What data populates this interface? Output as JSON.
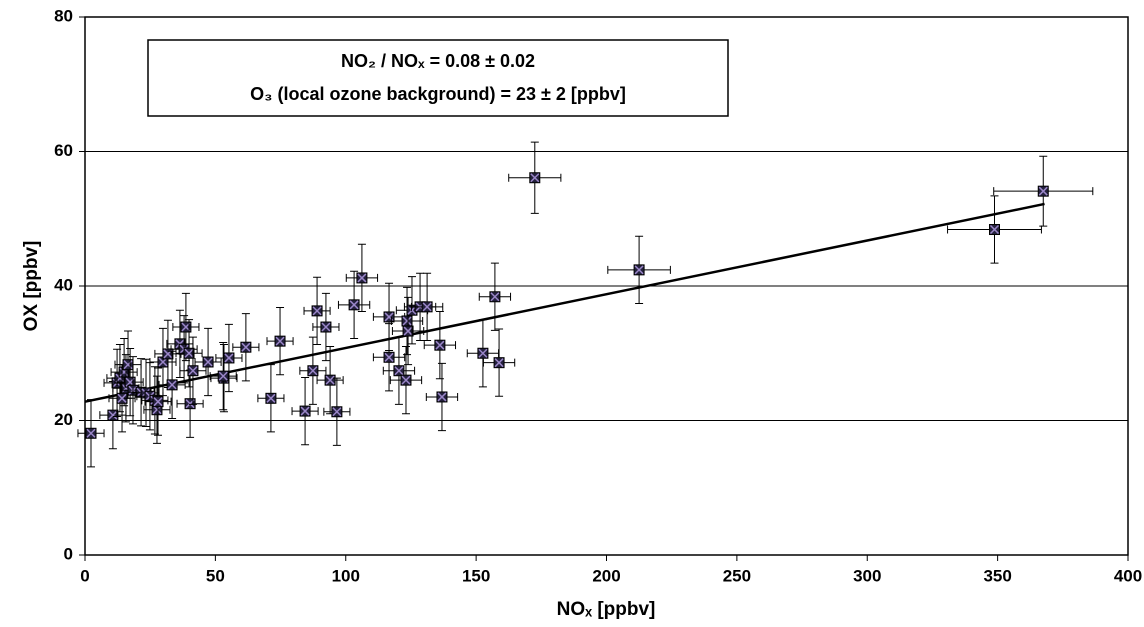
{
  "chart_data": {
    "type": "scatter",
    "annotations": [
      "NO₂ / NOₓ = 0.08 ± 0.02",
      "O₃ (local ozone background) = 23 ± 2 [ppbv]"
    ],
    "x_label": "NOₓ [ppbv]",
    "y_label": "OX [ppbv]",
    "xlim": [
      0,
      400
    ],
    "xticks": [
      0,
      50,
      100,
      150,
      200,
      250,
      300,
      350,
      400
    ],
    "ylim": [
      0,
      80
    ],
    "yticks": [
      0,
      20,
      40,
      60,
      80
    ],
    "grid": true,
    "marker_color": "#24213d",
    "cross_color": "#9a86c8",
    "x": [
      2.3,
      10.7,
      12.3,
      13.4,
      15,
      15.7,
      14.2,
      16.5,
      17.3,
      18.4,
      21.5,
      23.4,
      24.9,
      26.8,
      27.6,
      28,
      29.9,
      31.8,
      33.4,
      36.4,
      38,
      38.7,
      39.9,
      40.3,
      41.4,
      47.2,
      53.3,
      53,
      55.2,
      61.7,
      71.3,
      74.8,
      84.4,
      87.4,
      89,
      92.4,
      94,
      96.6,
      103.2,
      106.2,
      116.6,
      116.6,
      120.4,
      123.1,
      123.5,
      123.9,
      125.4,
      128.5,
      131.2,
      136.1,
      136.9,
      152.6,
      157.2,
      158.8,
      172.5,
      212.5,
      348.8,
      367.5
    ],
    "y": [
      18.1,
      20.8,
      25.6,
      26.3,
      27.2,
      24.8,
      23.3,
      28.3,
      25.7,
      24.5,
      24.2,
      24.1,
      23.6,
      23,
      21.6,
      22.8,
      28.7,
      29.9,
      25.3,
      31.4,
      30.6,
      33.9,
      30,
      22.5,
      27.4,
      28.7,
      26.3,
      26.6,
      29.3,
      30.9,
      23.3,
      31.8,
      21.4,
      27.4,
      36.3,
      33.9,
      26,
      21.3,
      37.2,
      41.2,
      35.4,
      29.4,
      27.4,
      26,
      34.8,
      33.3,
      36.4,
      36.9,
      36.9,
      31.2,
      23.5,
      30,
      38.4,
      28.6,
      56.1,
      42.4,
      48.4,
      54.1
    ],
    "xerr": [
      5,
      5,
      5,
      5,
      5,
      5,
      5,
      5,
      5,
      5,
      5,
      5,
      5,
      5,
      5,
      5,
      5,
      5,
      5,
      5,
      5,
      5,
      5,
      5,
      5,
      5,
      5,
      5,
      5,
      5,
      5,
      5,
      5,
      5,
      5,
      5,
      5,
      5,
      6,
      6,
      6,
      6,
      6,
      6,
      6,
      6,
      6,
      6,
      6,
      6,
      6,
      6,
      6,
      6,
      10,
      12,
      18,
      19
    ],
    "yerr": [
      5,
      5,
      5,
      5,
      5,
      5,
      5,
      5,
      5,
      5,
      5,
      5,
      5,
      5,
      5,
      5,
      5,
      5,
      5,
      5,
      5,
      5,
      5,
      5,
      5,
      5,
      5,
      5,
      5,
      5,
      5,
      5,
      5,
      5,
      5,
      5,
      5,
      5,
      5,
      5,
      5,
      5,
      5,
      5,
      5,
      5,
      5,
      5,
      5,
      5,
      5,
      5,
      5,
      5,
      5.3,
      5,
      5,
      5.2
    ],
    "fit_line": {
      "x": [
        0,
        368
      ],
      "y": [
        22.8,
        52.2
      ]
    }
  }
}
